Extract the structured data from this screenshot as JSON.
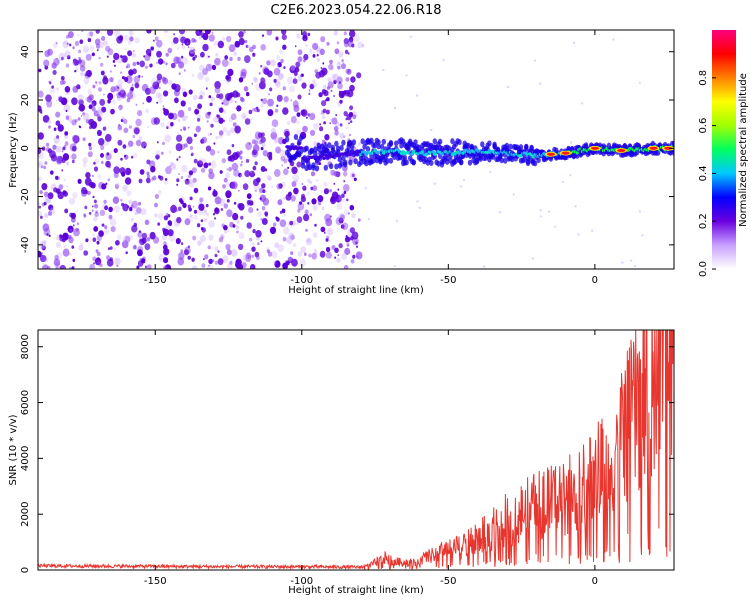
{
  "figure": {
    "title": "C2E6.2023.054.22.06.R18"
  },
  "colors": {
    "snr_line": "#e8352e",
    "scatter_violet": "#6a00e0",
    "axis": "#000000"
  },
  "chart_data": [
    {
      "type": "heatmap",
      "title": "C2E6.2023.054.22.06.R18",
      "xlabel": "Height of straight line (km)",
      "ylabel": "Frequency (Hz)",
      "xlim": [
        -190,
        27
      ],
      "ylim": [
        -50,
        49
      ],
      "x_ticks": [
        -150,
        -100,
        -50,
        0
      ],
      "y_ticks": [
        -40,
        -20,
        0,
        20,
        40
      ],
      "grid": false,
      "noise_region": {
        "x_range": [
          -190,
          -80
        ],
        "description": "broadband noise across full frequency range"
      },
      "signal_ridge": [
        {
          "x": -100,
          "y": -5
        },
        {
          "x": -90,
          "y": -3
        },
        {
          "x": -80,
          "y": -2
        },
        {
          "x": -70,
          "y": -1
        },
        {
          "x": -60,
          "y": -2
        },
        {
          "x": -50,
          "y": -2
        },
        {
          "x": -40,
          "y": -1
        },
        {
          "x": -30,
          "y": -2
        },
        {
          "x": -20,
          "y": -3
        },
        {
          "x": -10,
          "y": -2
        },
        {
          "x": 0,
          "y": 0
        },
        {
          "x": 10,
          "y": -1
        },
        {
          "x": 20,
          "y": 0
        },
        {
          "x": 27,
          "y": 0
        }
      ],
      "colorbar": {
        "label": "Normalized spectral amplitude",
        "range": [
          0,
          1
        ],
        "ticks": [
          0.0,
          0.2,
          0.4,
          0.6,
          0.8
        ],
        "tick_labels": [
          "0.0",
          "0.2",
          "0.4",
          "0.6",
          "0.8"
        ],
        "colors": [
          "#ffffff",
          "#c8a0ff",
          "#6a00e0",
          "#0000ff",
          "#00c8ff",
          "#00ff60",
          "#a0ff00",
          "#ffff00",
          "#ff8000",
          "#ff0000",
          "#ff0080"
        ]
      }
    },
    {
      "type": "line",
      "xlabel": "Height of straight line (km)",
      "ylabel": "SNR (10 * v/v)",
      "xlim": [
        -190,
        27
      ],
      "ylim": [
        0,
        8600
      ],
      "x_ticks": [
        -150,
        -100,
        -50,
        0
      ],
      "y_ticks": [
        0,
        2000,
        4000,
        6000,
        8000
      ],
      "grid": false,
      "series": [
        {
          "color": "#e8352e",
          "x": [
            -190,
            -170,
            -150,
            -130,
            -110,
            -90,
            -80,
            -76,
            -72,
            -68,
            -64,
            -60,
            -56,
            -52,
            -48,
            -44,
            -40,
            -36,
            -32,
            -28,
            -24,
            -20,
            -16,
            -12,
            -8,
            -4,
            0,
            4,
            8,
            12,
            16,
            20,
            24,
            27
          ],
          "y": [
            150,
            140,
            130,
            120,
            120,
            110,
            100,
            200,
            450,
            300,
            250,
            350,
            500,
            650,
            750,
            900,
            1100,
            1400,
            1700,
            1900,
            2100,
            2300,
            2400,
            2600,
            2700,
            3000,
            3200,
            4200,
            4800,
            5300,
            6200,
            7300,
            7100,
            7300
          ]
        }
      ]
    }
  ]
}
